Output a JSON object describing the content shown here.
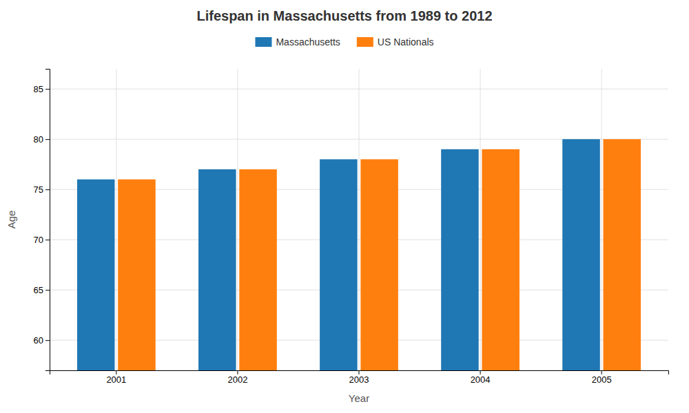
{
  "chart_data": {
    "type": "bar",
    "title": "Lifespan in Massachusetts from 1989 to 2012",
    "xlabel": "Year",
    "ylabel": "Age",
    "categories": [
      "2001",
      "2002",
      "2003",
      "2004",
      "2005"
    ],
    "series": [
      {
        "name": "Massachusetts",
        "values": [
          76,
          77,
          78,
          79,
          80
        ]
      },
      {
        "name": "US Nationals",
        "values": [
          76,
          77,
          78,
          79,
          80
        ]
      }
    ],
    "ylim": [
      57,
      87
    ],
    "yticks": [
      60,
      65,
      70,
      75,
      80,
      85
    ],
    "grid": true,
    "legend": "top"
  }
}
